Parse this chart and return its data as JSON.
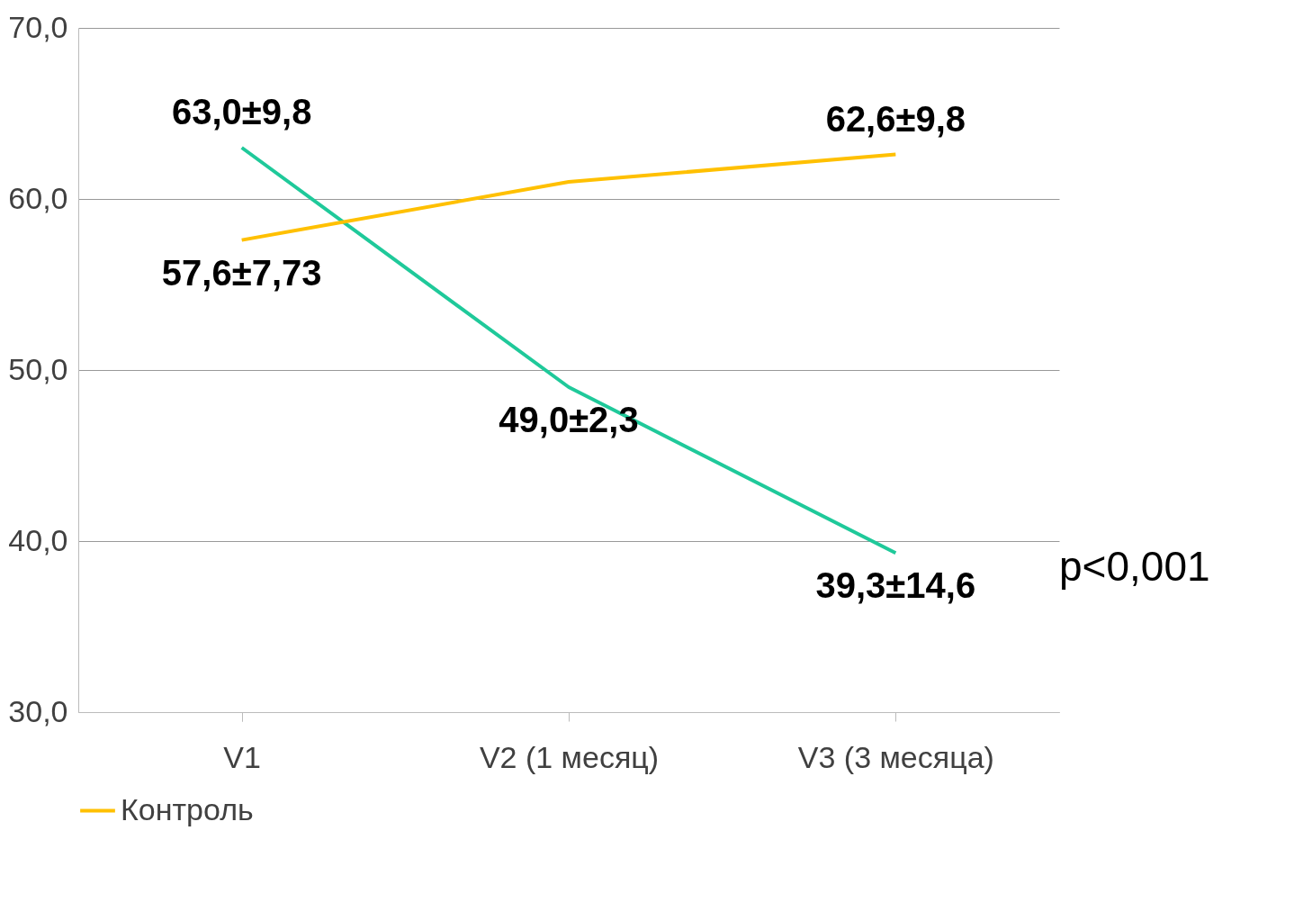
{
  "chart_data": {
    "type": "line",
    "categories": [
      "V1",
      "V2 (1 месяц)",
      "V3 (3 месяца)"
    ],
    "series": [
      {
        "color": "#1fc99a",
        "values": [
          63.0,
          49.0,
          39.3
        ],
        "value_labels": [
          "63,0±9,8",
          "49,0±2,3",
          "39,3±14,6"
        ]
      },
      {
        "name": "Контроль",
        "color": "#ffc000",
        "values": [
          57.6,
          61.0,
          62.6
        ],
        "value_labels": [
          "57,6±7,73",
          null,
          "62,6±9,8"
        ]
      }
    ],
    "ylim": [
      30,
      70
    ],
    "yticks": [
      {
        "value": 30,
        "label": "30,0"
      },
      {
        "value": 40,
        "label": "40,0"
      },
      {
        "value": 50,
        "label": "50,0"
      },
      {
        "value": 60,
        "label": "60,0"
      },
      {
        "value": 70,
        "label": "70,0"
      }
    ],
    "grid": "y",
    "legend": "bottom",
    "marker": "none",
    "line_style": "solid",
    "annotations": [
      "p<0,001"
    ]
  }
}
